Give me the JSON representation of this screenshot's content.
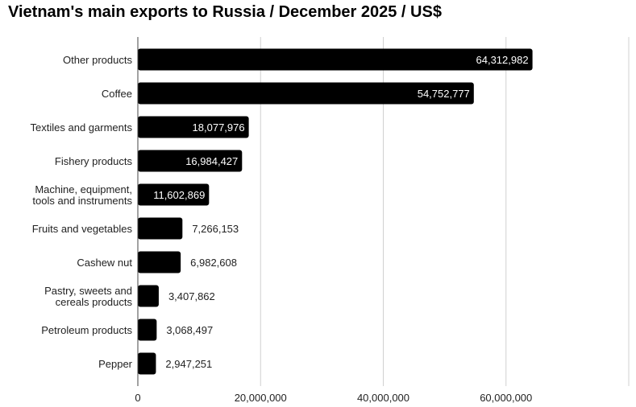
{
  "chart_data": {
    "type": "bar",
    "orientation": "horizontal",
    "title": "Vietnam's main exports to Russia / December 2025 / US$",
    "categories": [
      "Other products",
      "Coffee",
      "Textiles and garments",
      "Fishery products",
      "Machine, equipment, tools and instruments",
      "Fruits and vegetables",
      "Cashew nut",
      "Pastry, sweets and cereals products",
      "Petroleum products",
      "Pepper"
    ],
    "category_lines": [
      [
        "Other products"
      ],
      [
        "Coffee"
      ],
      [
        "Textiles and garments"
      ],
      [
        "Fishery products"
      ],
      [
        "Machine, equipment,",
        "tools and instruments"
      ],
      [
        "Fruits and vegetables"
      ],
      [
        "Cashew nut"
      ],
      [
        "Pastry, sweets and",
        "cereals products"
      ],
      [
        "Petroleum products"
      ],
      [
        "Pepper"
      ]
    ],
    "values": [
      64312982,
      54752777,
      18077976,
      16984427,
      11602869,
      7266153,
      6982608,
      3407862,
      3068497,
      2947251
    ],
    "value_labels": [
      "64,312,982",
      "54,752,777",
      "18,077,976",
      "16,984,427",
      "11,602,869",
      "7,266,153",
      "6,982,608",
      "3,407,862",
      "3,068,497",
      "2,947,251"
    ],
    "xlim": [
      0,
      80000000
    ],
    "xticks": [
      0,
      20000000,
      40000000,
      60000000
    ],
    "xtick_labels": [
      "0",
      "20,000,000",
      "40,000,000",
      "60,000,000"
    ],
    "grid": true,
    "bar_color": "#000000",
    "grid_color": "#d0d0d0"
  }
}
